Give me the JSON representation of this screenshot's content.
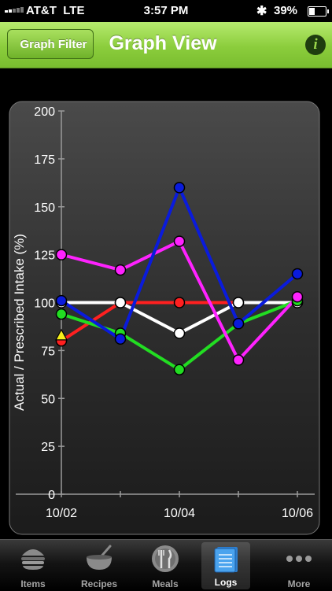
{
  "status": {
    "carrier": "AT&T",
    "network": "LTE",
    "time": "3:57 PM",
    "battery": "39%",
    "battery_level": 0.39
  },
  "nav": {
    "back_label": "Graph Filter",
    "title": "Graph View",
    "info": "i"
  },
  "chart_data": {
    "type": "line",
    "ylabel": "Actual / Prescribed Intake (%)",
    "ylim": [
      0,
      200
    ],
    "yticks": [
      "0",
      "25",
      "50",
      "75",
      "100",
      "125",
      "150",
      "175",
      "200"
    ],
    "xticks": [
      "10/02",
      "10/04",
      "10/06"
    ],
    "x": [
      "10/02",
      "10/03",
      "10/04",
      "10/05",
      "10/06"
    ],
    "grid": false,
    "series": [
      {
        "color": "#ff2020",
        "values": [
          80,
          100,
          100,
          100,
          100
        ]
      },
      {
        "color": "#ffffff",
        "values": [
          100,
          100,
          84,
          100,
          100
        ]
      },
      {
        "color": "#22dd22",
        "values": [
          94,
          84,
          65,
          89,
          101
        ]
      },
      {
        "color": "#ff22ff",
        "values": [
          125,
          117,
          132,
          70,
          103
        ]
      },
      {
        "color": "#0a1bdc",
        "values": [
          101,
          81,
          160,
          89,
          115
        ]
      }
    ],
    "marker_triangle": {
      "x": "10/02",
      "value": 83,
      "color": "#f6ee1a"
    }
  },
  "tabs": [
    {
      "label": "Items",
      "icon": "burger-icon",
      "active": false
    },
    {
      "label": "Recipes",
      "icon": "mixing-bowl-icon",
      "active": false
    },
    {
      "label": "Meals",
      "icon": "plate-utensils-icon",
      "active": false
    },
    {
      "label": "Logs",
      "icon": "notebook-icon",
      "active": true
    },
    {
      "label": "More",
      "icon": "more-dots-icon",
      "active": false
    }
  ]
}
